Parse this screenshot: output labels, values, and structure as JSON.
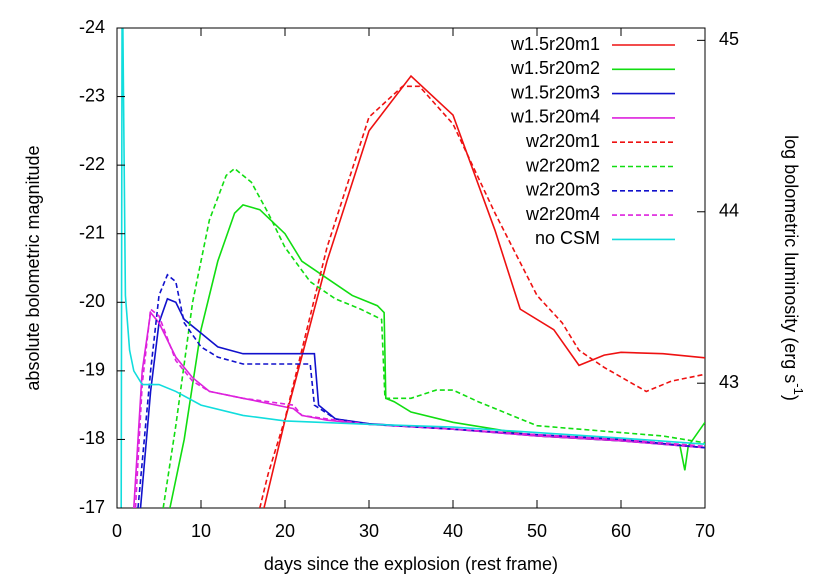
{
  "chart_data": {
    "type": "line",
    "xlabel": "days since the explosion (rest frame)",
    "ylabel": "absolute bolometric magnitude",
    "y2label": [
      "log bolometric luminosity (erg s",
      "-1",
      ")"
    ],
    "xlim": [
      0,
      70
    ],
    "xticks": [
      0,
      10,
      20,
      30,
      40,
      50,
      60,
      70
    ],
    "ylim": [
      -17,
      -24
    ],
    "yticks": [
      -24,
      -23,
      -22,
      -21,
      -20,
      -19,
      -18,
      -17
    ],
    "y2lim": [
      42.272,
      45.072
    ],
    "y2ticks": [
      43,
      44,
      45
    ],
    "legend": "upper right",
    "series": [
      {
        "name": "w1.5r20m1",
        "color": "#ee1111",
        "linestyle": "solid",
        "x": [
          17.5,
          20,
          25,
          30,
          35,
          40,
          45,
          48,
          52,
          55,
          58,
          60,
          65,
          70
        ],
        "values": [
          -17,
          -18.28,
          -20.6,
          -22.5,
          -23.3,
          -22.73,
          -21.05,
          -19.9,
          -19.6,
          -19.08,
          -19.23,
          -19.27,
          -19.25,
          -19.19
        ]
      },
      {
        "name": "w1.5r20m2",
        "color": "#11dd11",
        "linestyle": "solid",
        "x": [
          6.3,
          8,
          10,
          12,
          14,
          15,
          17,
          20,
          22,
          25,
          28,
          31,
          31.8,
          32,
          33,
          35,
          40,
          50,
          60,
          67,
          67.6,
          68,
          70
        ],
        "values": [
          -17,
          -18.0,
          -19.6,
          -20.6,
          -21.3,
          -21.42,
          -21.35,
          -21.0,
          -20.6,
          -20.35,
          -20.1,
          -19.95,
          -19.85,
          -18.6,
          -18.55,
          -18.4,
          -18.25,
          -18.05,
          -17.98,
          -17.92,
          -17.55,
          -17.9,
          -18.25
        ]
      },
      {
        "name": "w1.5r20m3",
        "color": "#1111cc",
        "linestyle": "solid",
        "x": [
          2.8,
          4,
          5,
          6,
          7,
          8,
          10,
          12,
          15,
          20,
          23.5,
          24,
          26,
          30,
          40,
          50,
          60,
          70
        ],
        "values": [
          -17,
          -18.7,
          -19.7,
          -20.05,
          -20.0,
          -19.75,
          -19.55,
          -19.35,
          -19.25,
          -19.25,
          -19.25,
          -18.5,
          -18.3,
          -18.23,
          -18.15,
          -18.05,
          -17.98,
          -17.88
        ]
      },
      {
        "name": "w1.5r20m4",
        "color": "#dd22dd",
        "linestyle": "solid",
        "x": [
          2,
          3,
          4,
          5,
          7,
          9,
          11,
          15,
          21,
          22,
          25,
          30,
          40,
          50,
          60,
          70
        ],
        "values": [
          -17,
          -19.0,
          -19.85,
          -19.7,
          -19.2,
          -18.9,
          -18.7,
          -18.6,
          -18.45,
          -18.35,
          -18.28,
          -18.22,
          -18.15,
          -18.05,
          -17.98,
          -17.88
        ]
      },
      {
        "name": "w2r20m1",
        "color": "#ee1111",
        "linestyle": "dashed",
        "x": [
          17,
          18,
          20,
          25,
          30,
          34,
          36,
          40,
          45,
          50,
          53,
          55,
          58,
          63,
          66,
          70
        ],
        "values": [
          -17,
          -17.5,
          -18.3,
          -20.8,
          -22.7,
          -23.15,
          -23.15,
          -22.6,
          -21.3,
          -20.1,
          -19.7,
          -19.3,
          -19.05,
          -18.7,
          -18.85,
          -18.95
        ]
      },
      {
        "name": "w2r20m2",
        "color": "#11dd11",
        "linestyle": "dashed",
        "x": [
          5.5,
          7,
          9,
          11,
          13,
          14,
          16,
          18,
          20,
          23,
          26,
          29,
          31.5,
          31.9,
          33,
          35,
          38,
          40,
          43,
          50,
          60,
          65,
          70
        ],
        "values": [
          -17,
          -18.2,
          -20.0,
          -21.2,
          -21.85,
          -21.95,
          -21.75,
          -21.3,
          -20.8,
          -20.3,
          -20.05,
          -19.9,
          -19.75,
          -18.6,
          -18.6,
          -18.6,
          -18.72,
          -18.72,
          -18.55,
          -18.2,
          -18.1,
          -18.05,
          -17.95
        ]
      },
      {
        "name": "w2r20m3",
        "color": "#1111cc",
        "linestyle": "dashed",
        "x": [
          2.5,
          4,
          5,
          6,
          7,
          8,
          10,
          12,
          15,
          20,
          23,
          23.5,
          26,
          30,
          40,
          50,
          60,
          70
        ],
        "values": [
          -17,
          -19.0,
          -20.1,
          -20.4,
          -20.3,
          -19.7,
          -19.35,
          -19.2,
          -19.1,
          -19.1,
          -19.1,
          -18.5,
          -18.3,
          -18.22,
          -18.15,
          -18.07,
          -18.0,
          -17.88
        ]
      },
      {
        "name": "w2r20m4",
        "color": "#dd22dd",
        "linestyle": "dashed",
        "x": [
          2.2,
          3,
          4,
          5,
          7,
          9,
          11,
          15,
          21,
          22,
          25,
          30,
          40,
          50,
          60,
          70
        ],
        "values": [
          -17,
          -18.8,
          -19.9,
          -19.8,
          -19.15,
          -18.85,
          -18.7,
          -18.6,
          -18.5,
          -18.35,
          -18.3,
          -18.22,
          -18.15,
          -18.07,
          -18.0,
          -17.9
        ]
      },
      {
        "name": "no CSM",
        "color": "#11dddd",
        "linestyle": "solid",
        "x": [
          0.5,
          0.6,
          0.7,
          1,
          1.5,
          2,
          3,
          5,
          7,
          10,
          15,
          20,
          30,
          40,
          50,
          60,
          70
        ],
        "values": [
          -17,
          -24,
          -24,
          -20.1,
          -19.3,
          -19.0,
          -18.8,
          -18.8,
          -18.7,
          -18.5,
          -18.35,
          -18.27,
          -18.22,
          -18.18,
          -18.1,
          -18.02,
          -17.93
        ]
      }
    ]
  }
}
